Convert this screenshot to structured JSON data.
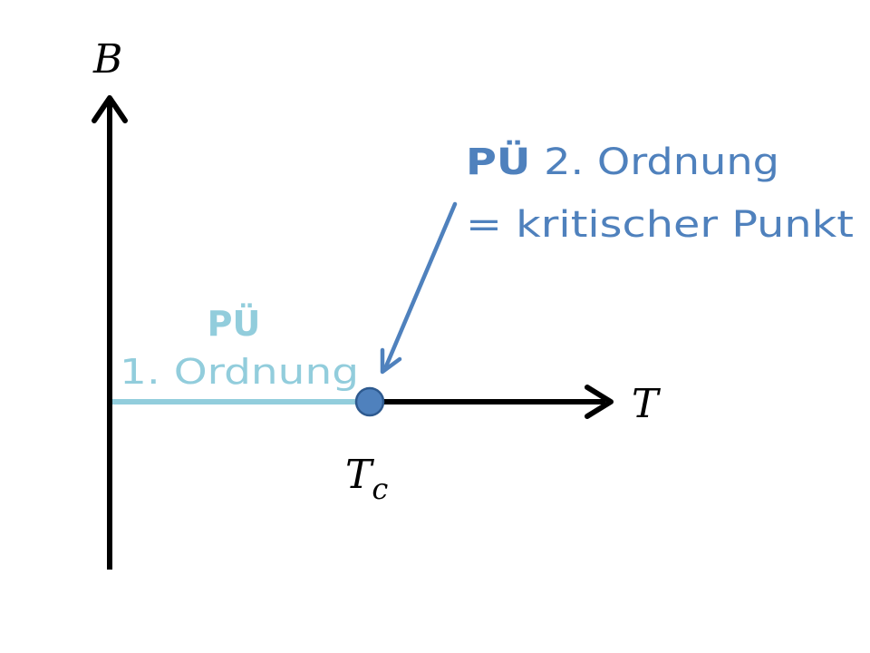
{
  "axes": {
    "y_label": "B",
    "x_label": "T",
    "critical_temp_symbol": "T",
    "critical_temp_subscript": "c"
  },
  "annotations": {
    "first_order": {
      "bold": "PÜ",
      "text": "1. Ordnung",
      "color": "#92cddc"
    },
    "second_order": {
      "bold": "PÜ",
      "text": " 2. Ordnung",
      "line2": "= kritischer Punkt",
      "color": "#4f81bd"
    }
  },
  "colors": {
    "axis": "#000000",
    "phase_line": "#92cddc",
    "critical_point_fill": "#4f81bd",
    "critical_point_stroke": "#2e5a8f",
    "arrow": "#4f81bd"
  }
}
